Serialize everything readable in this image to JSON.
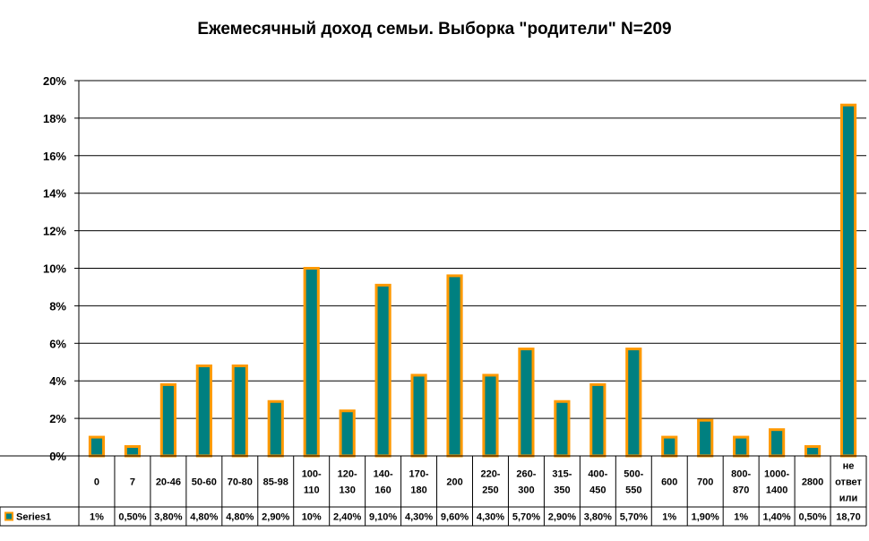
{
  "chart_data": {
    "type": "bar",
    "title": "Ежемесячный доход семьи. Выборка \"родители\" N=209",
    "xlabel": "",
    "ylabel": "",
    "ylim": [
      0,
      20
    ],
    "yticks": [
      "0%",
      "2%",
      "4%",
      "6%",
      "8%",
      "10%",
      "12%",
      "14%",
      "16%",
      "18%",
      "20%"
    ],
    "grid": true,
    "legend_placement": "bottom-left, in data table",
    "categories": [
      "0",
      "7",
      "20-46",
      "50-60",
      "70-80",
      "85-98",
      "100-110",
      "120-130",
      "140-160",
      "170-180",
      "200",
      "220-250",
      "260-300",
      "315-350",
      "400-450",
      "500-550",
      "600",
      "700",
      "800-870",
      "1000-1400",
      "2800",
      "не ответ или"
    ],
    "category_lines": [
      [
        "0"
      ],
      [
        "7"
      ],
      [
        "20-46"
      ],
      [
        "50-60"
      ],
      [
        "70-80"
      ],
      [
        "85-98"
      ],
      [
        "100-",
        "110"
      ],
      [
        "120-",
        "130"
      ],
      [
        "140-",
        "160"
      ],
      [
        "170-",
        "180"
      ],
      [
        "200"
      ],
      [
        "220-",
        "250"
      ],
      [
        "260-",
        "300"
      ],
      [
        "315-",
        "350"
      ],
      [
        "400-",
        "450"
      ],
      [
        "500-",
        "550"
      ],
      [
        "600"
      ],
      [
        "700"
      ],
      [
        "800-",
        "870"
      ],
      [
        "1000-",
        "1400"
      ],
      [
        "2800"
      ],
      [
        "не",
        "ответ",
        "или"
      ]
    ],
    "series": [
      {
        "name": "Series1",
        "values": [
          1,
          0.5,
          3.8,
          4.8,
          4.8,
          2.9,
          10,
          2.4,
          9.1,
          4.3,
          9.6,
          4.3,
          5.7,
          2.9,
          3.8,
          5.7,
          1,
          1.9,
          1,
          1.4,
          0.5,
          18.7
        ],
        "labels": [
          "1%",
          "0,50%",
          "3,80%",
          "4,80%",
          "4,80%",
          "2,90%",
          "10%",
          "2,40%",
          "9,10%",
          "4,30%",
          "9,60%",
          "4,30%",
          "5,70%",
          "2,90%",
          "3,80%",
          "5,70%",
          "1%",
          "1,90%",
          "1%",
          "1,40%",
          "0,50%",
          "18,70"
        ]
      }
    ],
    "colors": {
      "bar_fill": "#008080",
      "bar_border": "#FF9900",
      "grid": "#000000",
      "axis": "#000000"
    }
  }
}
